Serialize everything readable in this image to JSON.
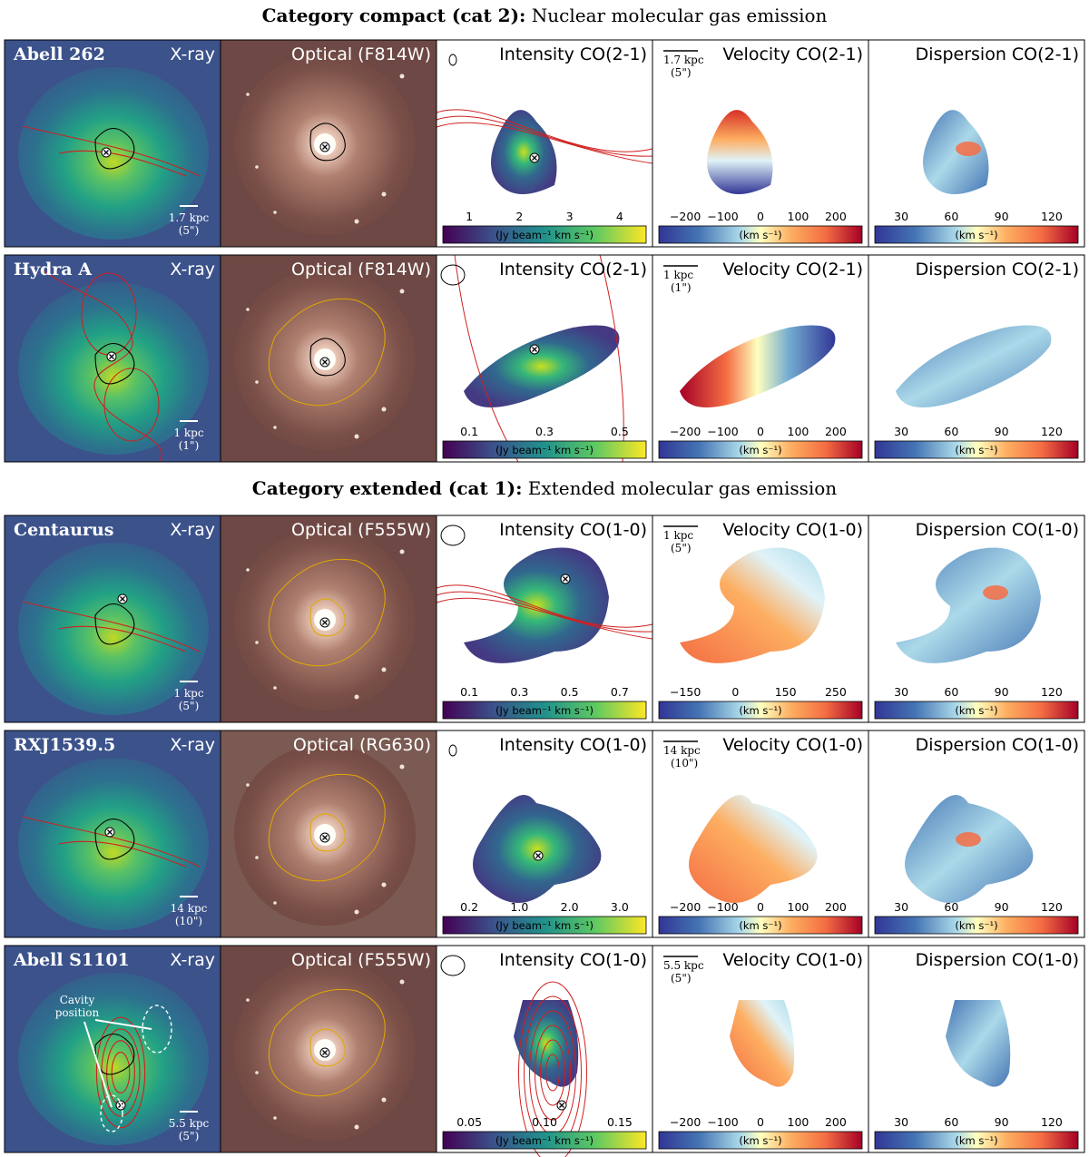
{
  "sections": [
    {
      "bold": "Category compact (cat 2):",
      "rest": " Nuclear molecular gas emission"
    },
    {
      "bold": "Category extended (cat 1):",
      "rest": " Extended molecular gas emission"
    }
  ],
  "colorbar_labels": {
    "intensity": "(Jy beam⁻¹ km s⁻¹)",
    "velocity": "(km s⁻¹)",
    "dispersion": "(km s⁻¹)"
  },
  "xray_title": "X-ray",
  "dispersion_ticks": [
    "30",
    "60",
    "90",
    "120"
  ],
  "cavity_label": [
    "Cavity",
    "position"
  ],
  "rows": [
    {
      "source": "Abell 262",
      "optical": "Optical (F814W)",
      "intensity_title": "Intensity CO(2-1)",
      "velocity_title": "Velocity CO(2-1)",
      "dispersion_title": "Dispersion CO(2-1)",
      "xray_scale": [
        "1.7 kpc",
        "(5\")"
      ],
      "vel_scale": [
        "1.7 kpc",
        "(5\")"
      ],
      "intensity_ticks": [
        "1",
        "2",
        "3",
        "4"
      ],
      "velocity_ticks": [
        "−200",
        "−100",
        "0",
        "100",
        "200"
      ]
    },
    {
      "source": "Hydra A",
      "optical": "Optical (F814W)",
      "intensity_title": "Intensity CO(2-1)",
      "velocity_title": "Velocity CO(2-1)",
      "dispersion_title": "Dispersion CO(2-1)",
      "xray_scale": [
        "1 kpc",
        "(1\")"
      ],
      "vel_scale": [
        "1 kpc",
        "(1\")"
      ],
      "intensity_ticks": [
        "0.1",
        "0.3",
        "0.5"
      ],
      "velocity_ticks": [
        "−200",
        "−100",
        "0",
        "100",
        "200"
      ]
    },
    {
      "source": "Centaurus",
      "optical": "Optical (F555W)",
      "intensity_title": "Intensity CO(1-0)",
      "velocity_title": "Velocity CO(1-0)",
      "dispersion_title": "Dispersion CO(1-0)",
      "xray_scale": [
        "1 kpc",
        "(5\")"
      ],
      "vel_scale": [
        "1 kpc",
        "(5\")"
      ],
      "intensity_ticks": [
        "0.1",
        "0.3",
        "0.5",
        "0.7"
      ],
      "velocity_ticks": [
        "−150",
        "0",
        "150",
        "250"
      ]
    },
    {
      "source": "RXJ1539.5",
      "optical": "Optical (RG630)",
      "intensity_title": "Intensity CO(1-0)",
      "velocity_title": "Velocity CO(1-0)",
      "dispersion_title": "Dispersion CO(1-0)",
      "xray_scale": [
        "14 kpc",
        "(10\")"
      ],
      "vel_scale": [
        "14 kpc",
        "(10\")"
      ],
      "intensity_ticks": [
        "0.2",
        "1.0",
        "2.0",
        "3.0"
      ],
      "velocity_ticks": [
        "−200",
        "−100",
        "0",
        "100",
        "200"
      ]
    },
    {
      "source": "Abell S1101",
      "optical": "Optical (F555W)",
      "intensity_title": "Intensity CO(1-0)",
      "velocity_title": "Velocity CO(1-0)",
      "dispersion_title": "Dispersion CO(1-0)",
      "xray_scale": [
        "5.5 kpc",
        "(5\")"
      ],
      "vel_scale": [
        "5.5 kpc",
        "(5\")"
      ],
      "intensity_ticks": [
        "0.05",
        "0.10",
        "0.15"
      ],
      "velocity_ticks": [
        "−200",
        "−100",
        "0",
        "100",
        "200"
      ]
    }
  ]
}
